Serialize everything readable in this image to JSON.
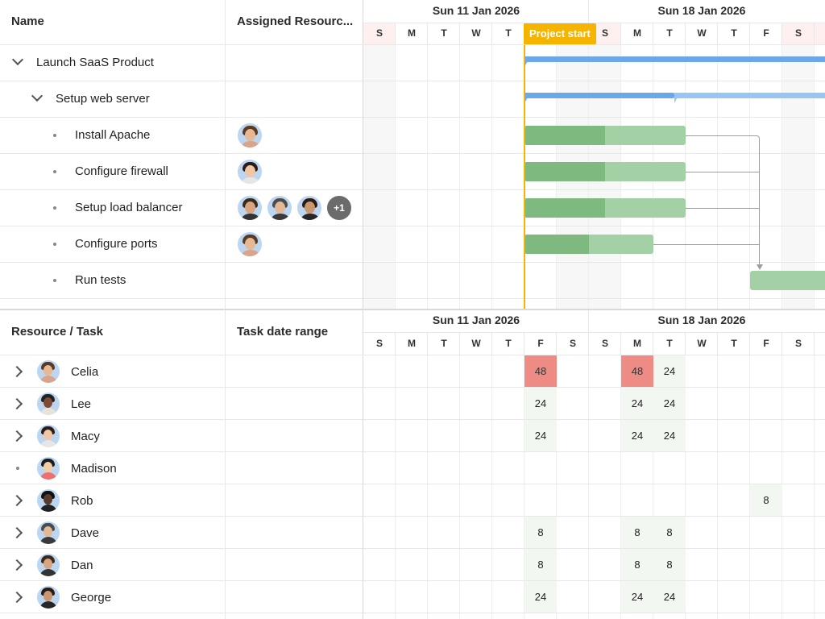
{
  "colors": {
    "project_start": "#f5b400",
    "parent_bar": "#6aa8ea",
    "parent_bar_remaining": "#98c6f3",
    "task_bar_done": "#7eb980",
    "task_bar": "#a3d1a5",
    "over_allocation": "#ee8b84",
    "allocation_cell": "#f2f7f2"
  },
  "gantt": {
    "columns": {
      "name": "Name",
      "resources": "Assigned Resourc..."
    },
    "weeks": [
      "Sun 11 Jan 2026",
      "Sun 18 Jan 2026"
    ],
    "days": [
      "S",
      "M",
      "T",
      "W",
      "T",
      "F",
      "S",
      "S",
      "M",
      "T",
      "W",
      "T",
      "F",
      "S"
    ],
    "project_start_label": "Project start",
    "tasks": [
      {
        "name": "Launch SaaS Product",
        "type": "parent",
        "level": 0
      },
      {
        "name": "Setup web server",
        "type": "parent",
        "level": 1
      },
      {
        "name": "Install Apache",
        "type": "leaf",
        "level": 2,
        "avatars": [
          "avatar-celia"
        ]
      },
      {
        "name": "Configure firewall",
        "type": "leaf",
        "level": 2,
        "avatars": [
          "avatar-macy"
        ]
      },
      {
        "name": "Setup load balancer",
        "type": "leaf",
        "level": 2,
        "avatars": [
          "avatar-dan",
          "avatar-dave",
          "avatar-george"
        ],
        "extra_count": "+1"
      },
      {
        "name": "Configure ports",
        "type": "leaf",
        "level": 2,
        "avatars": [
          "avatar-celia"
        ]
      },
      {
        "name": "Run tests",
        "type": "leaf",
        "level": 2,
        "avatars": []
      }
    ]
  },
  "histogram": {
    "columns": {
      "resource": "Resource / Task",
      "range": "Task date range"
    },
    "weeks": [
      "Sun 11 Jan 2026",
      "Sun 18 Jan 2026"
    ],
    "days": [
      "S",
      "M",
      "T",
      "W",
      "T",
      "F",
      "S",
      "S",
      "M",
      "T",
      "W",
      "T",
      "F",
      "S"
    ],
    "resources": [
      {
        "name": "Celia",
        "expandable": true,
        "avatar": "avatar-celia",
        "hours": {
          "5": "48",
          "8": "48",
          "9": "24"
        },
        "over": [
          5,
          8
        ]
      },
      {
        "name": "Lee",
        "expandable": true,
        "avatar": "avatar-lee",
        "hours": {
          "5": "24",
          "8": "24",
          "9": "24"
        },
        "over": []
      },
      {
        "name": "Macy",
        "expandable": true,
        "avatar": "avatar-macy",
        "hours": {
          "5": "24",
          "8": "24",
          "9": "24"
        },
        "over": []
      },
      {
        "name": "Madison",
        "expandable": false,
        "avatar": "avatar-madison",
        "hours": {},
        "over": []
      },
      {
        "name": "Rob",
        "expandable": true,
        "avatar": "avatar-rob",
        "hours": {
          "12": "8"
        },
        "over": []
      },
      {
        "name": "Dave",
        "expandable": true,
        "avatar": "avatar-dave",
        "hours": {
          "5": "8",
          "8": "8",
          "9": "8"
        },
        "over": []
      },
      {
        "name": "Dan",
        "expandable": true,
        "avatar": "avatar-dan",
        "hours": {
          "5": "8",
          "8": "8",
          "9": "8"
        },
        "over": []
      },
      {
        "name": "George",
        "expandable": true,
        "avatar": "avatar-george",
        "hours": {
          "5": "24",
          "8": "24",
          "9": "24"
        },
        "over": []
      }
    ]
  }
}
